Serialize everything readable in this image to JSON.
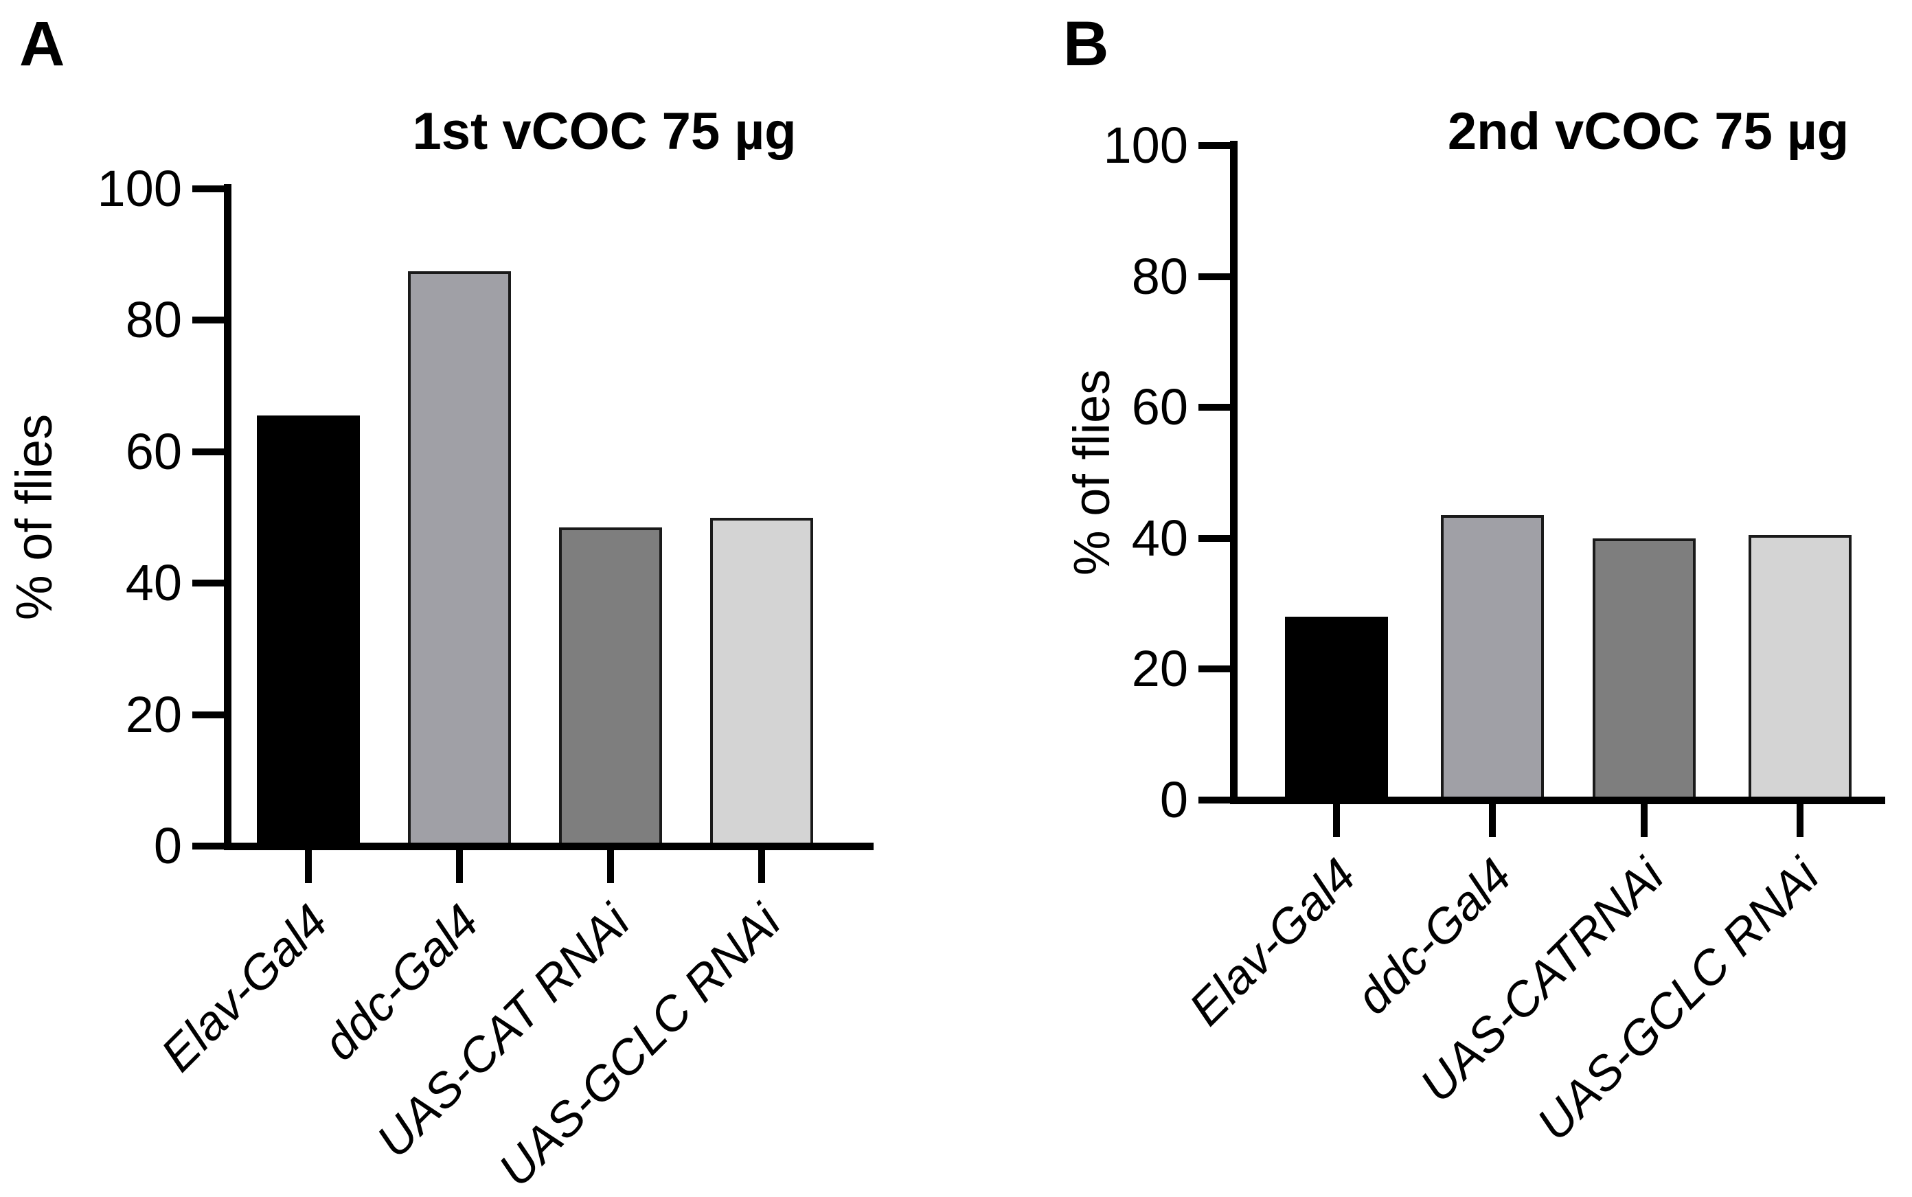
{
  "figure": {
    "background": "#ffffff",
    "panels": [
      {
        "letter": "A"
      },
      {
        "letter": "B"
      }
    ]
  },
  "chart_data": [
    {
      "type": "bar",
      "panel": "A",
      "title": "1st vCOC 75 µg",
      "xlabel": "",
      "ylabel": "% of flies",
      "categories": [
        "Elav-Gal4",
        "ddc-Gal4",
        "UAS-CAT RNAi",
        "UAS-GCLC RNAi"
      ],
      "values": [
        65.5,
        87.5,
        48.5,
        50
      ],
      "bar_colors": [
        "#000000",
        "#a0a0a6",
        "#7e7e7e",
        "#d4d4d4"
      ],
      "ylim": [
        0,
        100
      ],
      "yticks": [
        100,
        80,
        60,
        40,
        20,
        0
      ],
      "grid": false,
      "legend": "none",
      "x_label_rotation_deg": 45,
      "x_label_style": "italic"
    },
    {
      "type": "bar",
      "panel": "B",
      "title": "2nd vCOC 75 µg",
      "xlabel": "",
      "ylabel": "% of flies",
      "categories": [
        "Elav-Gal4",
        "ddc-Gal4",
        "UAS-CATRNAi",
        "UAS-GCLC RNAi"
      ],
      "values": [
        28,
        43.5,
        40,
        40.5
      ],
      "bar_colors": [
        "#000000",
        "#a0a0a6",
        "#7e7e7e",
        "#d4d4d4"
      ],
      "ylim": [
        0,
        100
      ],
      "yticks": [
        100,
        80,
        60,
        40,
        20,
        0
      ],
      "grid": false,
      "legend": "none",
      "x_label_rotation_deg": 45,
      "x_label_style": "italic"
    }
  ],
  "colors": {
    "background": "#ffffff",
    "axis": "#000000",
    "bar_outline": "#1a1a1a",
    "text": "#000000"
  }
}
